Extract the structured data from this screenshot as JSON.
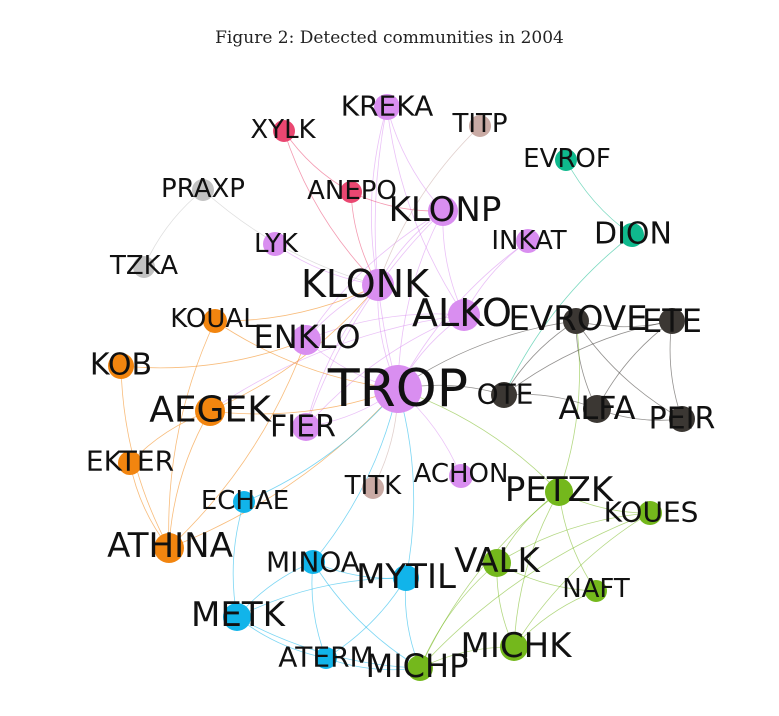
{
  "caption": "Figure 2: Detected communities in 2004",
  "colors": {
    "purple": "#d98ef0",
    "orange": "#f2850f",
    "gray": "#c2c2c2",
    "pink": "#ea4771",
    "teal": "#0fb98d",
    "dark": "#3b3733",
    "rose": "#c9aaa4",
    "blue": "#11b4ea",
    "green": "#74b81c"
  },
  "nodes": [
    {
      "id": "TROP",
      "label": "TROP",
      "community": "purple"
    },
    {
      "id": "KLONK",
      "label": "KLONK",
      "community": "purple"
    },
    {
      "id": "KLONP",
      "label": "KLONP",
      "community": "purple"
    },
    {
      "id": "ALKO",
      "label": "ALKO",
      "community": "purple"
    },
    {
      "id": "ENKLO",
      "label": "ENKLO",
      "community": "purple"
    },
    {
      "id": "FIER",
      "label": "FIER",
      "community": "purple"
    },
    {
      "id": "KREKA",
      "label": "KREKA",
      "community": "purple"
    },
    {
      "id": "LYK",
      "label": "LYK",
      "community": "purple"
    },
    {
      "id": "INKAT",
      "label": "INKAT",
      "community": "purple"
    },
    {
      "id": "ACHON",
      "label": "ACHON",
      "community": "purple"
    },
    {
      "id": "XYLK",
      "label": "XYLK",
      "community": "pink"
    },
    {
      "id": "ANEPO",
      "label": "ANEPO",
      "community": "pink"
    },
    {
      "id": "TITP",
      "label": "TITP",
      "community": "rose"
    },
    {
      "id": "TITK",
      "label": "TITK",
      "community": "rose"
    },
    {
      "id": "PRAXP",
      "label": "PRAXP",
      "community": "gray"
    },
    {
      "id": "TZKA",
      "label": "TZKA",
      "community": "gray"
    },
    {
      "id": "EVROF",
      "label": "EVROF",
      "community": "teal"
    },
    {
      "id": "DION",
      "label": "DION",
      "community": "teal"
    },
    {
      "id": "EVROVE",
      "label": "EVROVE",
      "community": "dark"
    },
    {
      "id": "ETE",
      "label": "ETE",
      "community": "dark"
    },
    {
      "id": "OTE",
      "label": "OTE",
      "community": "dark"
    },
    {
      "id": "ALFA",
      "label": "ALFA",
      "community": "dark"
    },
    {
      "id": "PEIR",
      "label": "PEIR",
      "community": "dark"
    },
    {
      "id": "KOUAL",
      "label": "KOUAL",
      "community": "orange"
    },
    {
      "id": "KOB",
      "label": "KOB",
      "community": "orange"
    },
    {
      "id": "AEGEK",
      "label": "AEGEK",
      "community": "orange"
    },
    {
      "id": "EKTER",
      "label": "EKTER",
      "community": "orange"
    },
    {
      "id": "ATHINA",
      "label": "ATHINA",
      "community": "orange"
    },
    {
      "id": "ECHAE",
      "label": "ECHAE",
      "community": "blue"
    },
    {
      "id": "MINOA",
      "label": "MINOA",
      "community": "blue"
    },
    {
      "id": "MYTIL",
      "label": "MYTIL",
      "community": "blue"
    },
    {
      "id": "METK",
      "label": "METK",
      "community": "blue"
    },
    {
      "id": "ATERM",
      "label": "ATERM",
      "community": "blue"
    },
    {
      "id": "PETZK",
      "label": "PETZK",
      "community": "green"
    },
    {
      "id": "KOUES",
      "label": "KOUES",
      "community": "green"
    },
    {
      "id": "VALK",
      "label": "VALK",
      "community": "green"
    },
    {
      "id": "NAFT",
      "label": "NAFT",
      "community": "green"
    },
    {
      "id": "MICHK",
      "label": "MICHK",
      "community": "green"
    },
    {
      "id": "MICHP",
      "label": "MICHP",
      "community": "green"
    }
  ],
  "edges": [
    [
      "KREKA",
      "KLONK"
    ],
    [
      "KREKA",
      "TROP"
    ],
    [
      "KREKA",
      "KLONP"
    ],
    [
      "KREKA",
      "ALKO"
    ],
    [
      "XYLK",
      "KLONK"
    ],
    [
      "XYLK",
      "ANEPO"
    ],
    [
      "ANEPO",
      "KLONK"
    ],
    [
      "ANEPO",
      "KLONP"
    ],
    [
      "KLONP",
      "KLONK"
    ],
    [
      "KLONP",
      "TROP"
    ],
    [
      "KLONP",
      "ALKO"
    ],
    [
      "KLONP",
      "ENKLO"
    ],
    [
      "KLONP",
      "FIER"
    ],
    [
      "KLONK",
      "TROP"
    ],
    [
      "KLONK",
      "ENKLO"
    ],
    [
      "KLONK",
      "FIER"
    ],
    [
      "LYK",
      "KLONK"
    ],
    [
      "INKAT",
      "ALKO"
    ],
    [
      "INKAT",
      "TROP"
    ],
    [
      "ALKO",
      "TROP"
    ],
    [
      "ALKO",
      "ENKLO"
    ],
    [
      "ALKO",
      "FIER"
    ],
    [
      "ALKO",
      "AEGEK"
    ],
    [
      "ENKLO",
      "TROP"
    ],
    [
      "FIER",
      "TROP"
    ],
    [
      "ACHON",
      "TROP"
    ],
    [
      "TITP",
      "KLONK"
    ],
    [
      "TITK",
      "TROP"
    ],
    [
      "PRAXP",
      "TZKA"
    ],
    [
      "PRAXP",
      "KLONK"
    ],
    [
      "EVROF",
      "DION"
    ],
    [
      "DION",
      "OTE"
    ],
    [
      "EVROVE",
      "ETE"
    ],
    [
      "EVROVE",
      "ALFA"
    ],
    [
      "EVROVE",
      "PEIR"
    ],
    [
      "EVROVE",
      "OTE"
    ],
    [
      "ETE",
      "ALFA"
    ],
    [
      "ETE",
      "PEIR"
    ],
    [
      "ALFA",
      "PEIR"
    ],
    [
      "ETE",
      "OTE"
    ],
    [
      "ALFA",
      "OTE"
    ],
    [
      "EVROVE",
      "TROP"
    ],
    [
      "OTE",
      "TROP"
    ],
    [
      "PETZK",
      "EVROVE"
    ],
    [
      "KOUAL",
      "TROP"
    ],
    [
      "KOUAL",
      "KLONK"
    ],
    [
      "KOB",
      "ENKLO"
    ],
    [
      "KOB",
      "ATHINA"
    ],
    [
      "AEGEK",
      "TROP"
    ],
    [
      "AEGEK",
      "ATHINA"
    ],
    [
      "AEGEK",
      "EKTER"
    ],
    [
      "AEGEK",
      "KLONK"
    ],
    [
      "EKTER",
      "ATHINA"
    ],
    [
      "ATHINA",
      "ENKLO"
    ],
    [
      "ATHINA",
      "TROP"
    ],
    [
      "KOUAL",
      "ATHINA"
    ],
    [
      "ECHAE",
      "METK"
    ],
    [
      "ECHAE",
      "TROP"
    ],
    [
      "MINOA",
      "METK"
    ],
    [
      "MINOA",
      "MYTIL"
    ],
    [
      "MINOA",
      "ATERM"
    ],
    [
      "MINOA",
      "TROP"
    ],
    [
      "MYTIL",
      "TROP"
    ],
    [
      "MYTIL",
      "METK"
    ],
    [
      "METK",
      "ATERM"
    ],
    [
      "ATERM",
      "MYTIL"
    ],
    [
      "ATERM",
      "MICHP"
    ],
    [
      "METK",
      "MICHP"
    ],
    [
      "PETZK",
      "VALK"
    ],
    [
      "PETZK",
      "KOUES"
    ],
    [
      "PETZK",
      "NAFT"
    ],
    [
      "PETZK",
      "MICHK"
    ],
    [
      "PETZK",
      "MICHP"
    ],
    [
      "PETZK",
      "TROP"
    ],
    [
      "VALK",
      "MICHK"
    ],
    [
      "VALK",
      "MICHP"
    ],
    [
      "VALK",
      "NAFT"
    ],
    [
      "KOUES",
      "MICHK"
    ],
    [
      "KOUES",
      "VALK"
    ],
    [
      "NAFT",
      "MICHK"
    ],
    [
      "MICHK",
      "MICHP"
    ],
    [
      "KOUES",
      "MICHP"
    ],
    [
      "MYTIL",
      "MICHP"
    ],
    [
      "MINOA",
      "MICHP"
    ]
  ]
}
